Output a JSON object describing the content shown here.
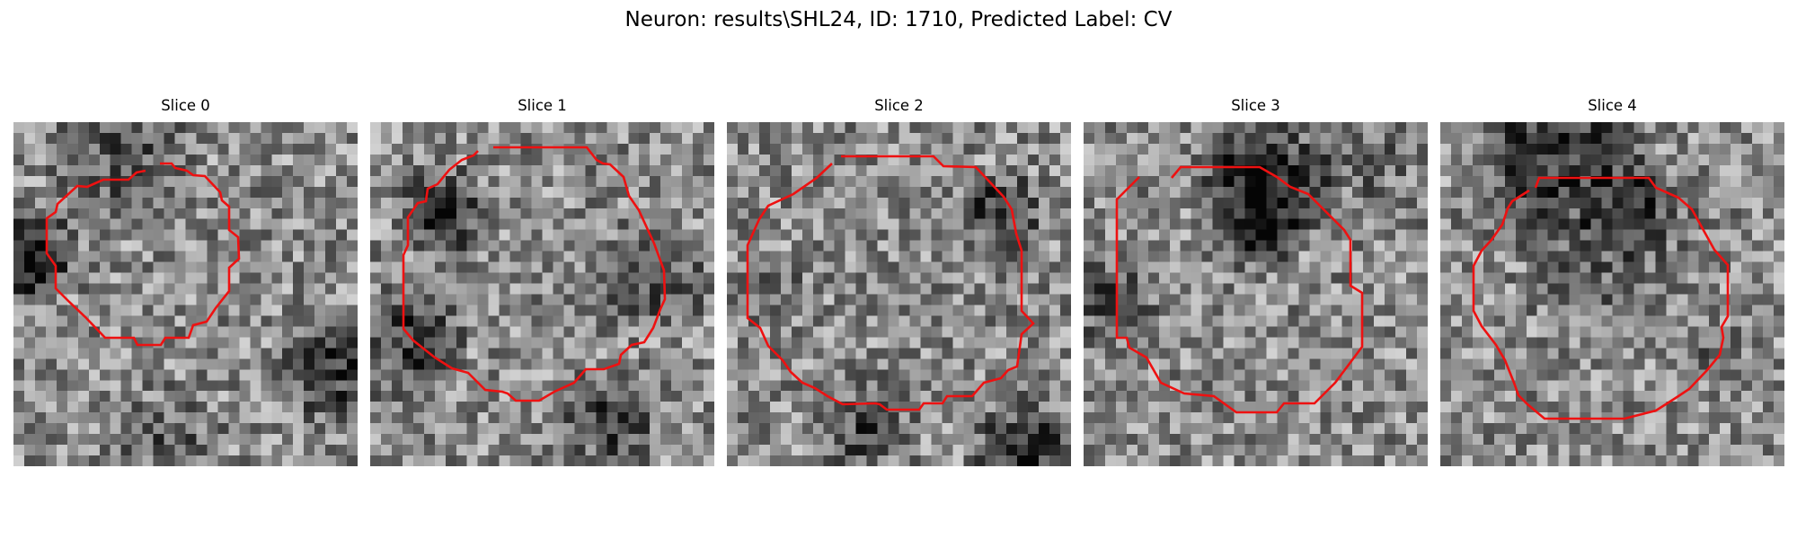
{
  "figure": {
    "suptitle": "Neuron: results\\SHL24, ID: 1710, Predicted Label: CV"
  },
  "panels": [
    {
      "title": "Slice 0"
    },
    {
      "title": "Slice 1"
    },
    {
      "title": "Slice 2"
    },
    {
      "title": "Slice 3"
    },
    {
      "title": "Slice 4"
    }
  ],
  "colors": {
    "contour": "#ee1111",
    "background": "#ffffff"
  },
  "image_style": {
    "colormap": "gray",
    "grid_cells": 32
  }
}
